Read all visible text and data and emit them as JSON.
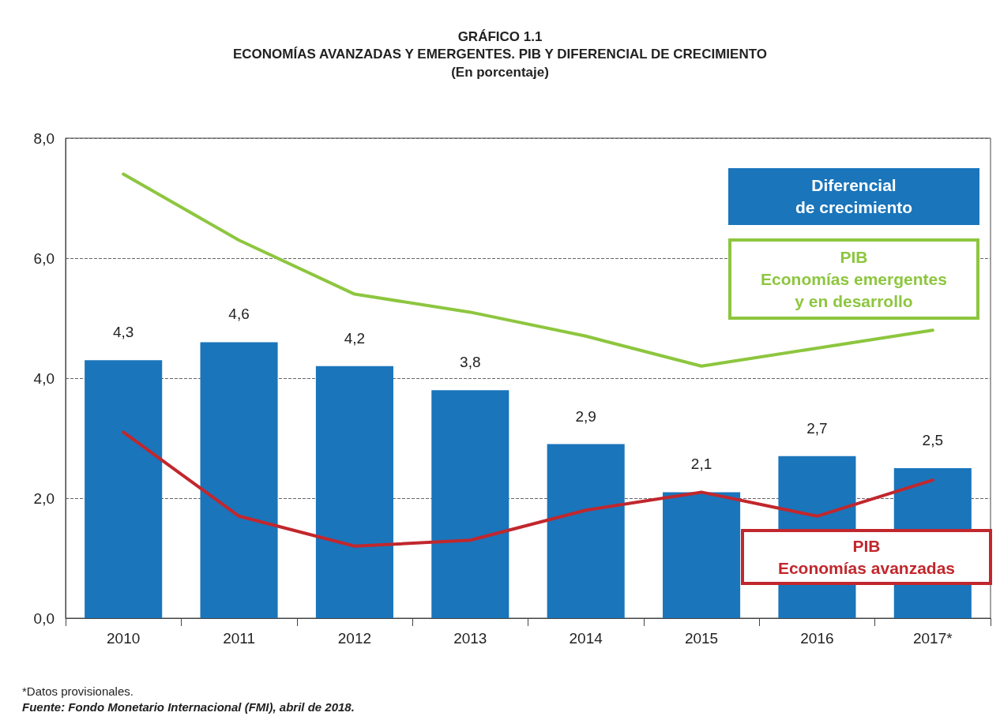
{
  "chart_data": {
    "type": "bar",
    "title": "GRÁFICO 1.1\nECONOMÍAS AVANZADAS Y EMERGENTES. PIB Y DIFERENCIAL DE CRECIMIENTO",
    "subtitle": "(En porcentaje)",
    "categories": [
      "2010",
      "2011",
      "2012",
      "2013",
      "2014",
      "2015",
      "2016",
      "2017*"
    ],
    "series": [
      {
        "name": "Diferencial\nde crecimiento",
        "color": "#1a75bb",
        "values": [
          4.3,
          4.6,
          4.2,
          3.8,
          2.9,
          2.1,
          2.7,
          2.5
        ],
        "value_labels": [
          "4,3",
          "4,6",
          "4,2",
          "3,8",
          "2,9",
          "2,1",
          "2,7",
          "2,5"
        ]
      },
      {
        "name": "PIB\nEconomías emergentes\ny en desarrollo",
        "type": "line",
        "color": "#8dc63f",
        "values": [
          7.4,
          6.3,
          5.4,
          5.1,
          4.7,
          4.2,
          4.5,
          4.8
        ]
      },
      {
        "name": "PIB\nEconomías avanzadas",
        "type": "line",
        "color": "#c1272d",
        "values": [
          3.1,
          1.7,
          1.2,
          1.3,
          1.8,
          2.1,
          1.7,
          2.3
        ]
      }
    ],
    "ylim": [
      0,
      8
    ],
    "yticks": [
      {
        "value": 0,
        "label": "0,0"
      },
      {
        "value": 2,
        "label": "2,0"
      },
      {
        "value": 4,
        "label": "4,0"
      },
      {
        "value": 6,
        "label": "6,0"
      },
      {
        "value": 8,
        "label": "8,0"
      }
    ],
    "grid": "y",
    "legend": "right",
    "marker": "none",
    "line_style": "solid",
    "annotations": [
      "*Datos provisionales.",
      "Fuente: Fondo Monetario Internacional (FMI), abril de 2018."
    ]
  }
}
